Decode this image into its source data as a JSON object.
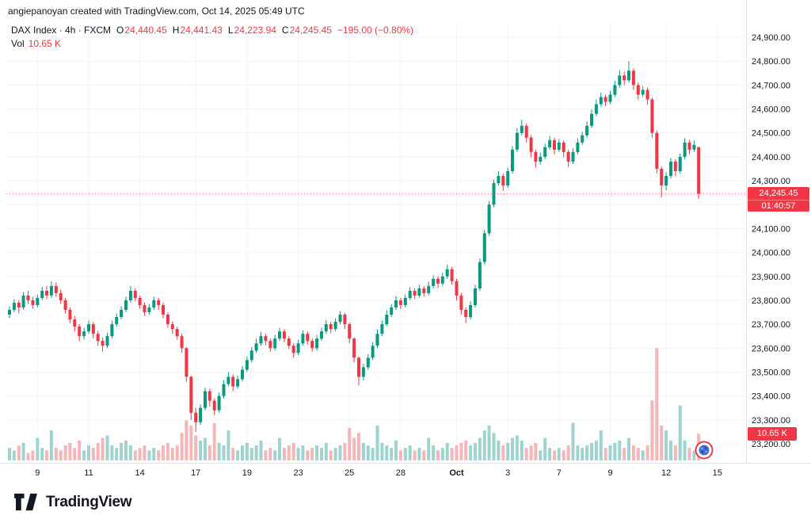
{
  "attribution": "angiepanoyan created with TradingView.com, Oct 14, 2025 05:49 UTC",
  "legend": {
    "title": "DAX Index · 4h · FXCM",
    "o_label": "O",
    "o": "24,440.45",
    "h_label": "H",
    "h": "24,441.43",
    "l_label": "L",
    "l": "24,223.94",
    "c_label": "C",
    "c": "24,245.45",
    "change": "−195.00 (−0.80%)",
    "vol_label": "Vol",
    "vol_value": "10.65 K"
  },
  "badges": {
    "price": "24,245.45",
    "countdown": "01:40:57",
    "volume": "10.65 K"
  },
  "footer": {
    "brand": "TradingView"
  },
  "chart_data": {
    "type": "candlestick",
    "symbol": "DAX Index",
    "interval": "4h",
    "exchange": "FXCM",
    "last_price": 24245.45,
    "last_volume_k": 10.65,
    "y_min": 23200,
    "y_max": 24900,
    "vol_axis_max": 46,
    "grid": true,
    "y_ticks": [
      24900,
      24800,
      24700,
      24600,
      24500,
      24400,
      24300,
      24200,
      24100,
      24000,
      23900,
      23800,
      23700,
      23600,
      23500,
      23400,
      23300,
      23200
    ],
    "x_ticks": [
      {
        "i": 6,
        "label": "9"
      },
      {
        "i": 17,
        "label": "11"
      },
      {
        "i": 28,
        "label": "14"
      },
      {
        "i": 40,
        "label": "17"
      },
      {
        "i": 51,
        "label": "19"
      },
      {
        "i": 62,
        "label": "23"
      },
      {
        "i": 73,
        "label": "25"
      },
      {
        "i": 84,
        "label": "28"
      },
      {
        "i": 96,
        "label": "Oct",
        "bold": true
      },
      {
        "i": 107,
        "label": "3"
      },
      {
        "i": 118,
        "label": "7"
      },
      {
        "i": 129,
        "label": "9"
      },
      {
        "i": 141,
        "label": "12"
      },
      {
        "i": 152,
        "label": "15"
      }
    ],
    "colors": {
      "up": "#089981",
      "down": "#f23645",
      "vol_up": "#9ed4cd",
      "vol_down": "#f5b6b8",
      "grid": "#f0f3fa",
      "border": "#e0e3eb",
      "axis_text": "#131722",
      "badge": "#f23645"
    },
    "candles": [
      [
        23740,
        23775,
        23725,
        23760,
        5
      ],
      [
        23760,
        23805,
        23750,
        23790,
        4
      ],
      [
        23790,
        23800,
        23745,
        23770,
        6
      ],
      [
        23770,
        23835,
        23760,
        23820,
        7
      ],
      [
        23820,
        23840,
        23785,
        23800,
        3
      ],
      [
        23800,
        23815,
        23765,
        23780,
        4
      ],
      [
        23780,
        23825,
        23770,
        23810,
        9
      ],
      [
        23810,
        23855,
        23800,
        23840,
        5
      ],
      [
        23840,
        23860,
        23805,
        23820,
        4
      ],
      [
        23820,
        23880,
        23810,
        23860,
        12
      ],
      [
        23860,
        23875,
        23815,
        23830,
        5
      ],
      [
        23830,
        23845,
        23785,
        23800,
        4
      ],
      [
        23800,
        23810,
        23745,
        23760,
        6
      ],
      [
        23760,
        23770,
        23705,
        23720,
        7
      ],
      [
        23720,
        23735,
        23670,
        23690,
        5
      ],
      [
        23690,
        23700,
        23630,
        23650,
        8
      ],
      [
        23650,
        23685,
        23635,
        23670,
        4
      ],
      [
        23670,
        23715,
        23660,
        23700,
        6
      ],
      [
        23700,
        23710,
        23640,
        23660,
        5
      ],
      [
        23660,
        23672,
        23610,
        23630,
        7
      ],
      [
        23630,
        23645,
        23585,
        23610,
        9
      ],
      [
        23610,
        23665,
        23600,
        23650,
        10
      ],
      [
        23650,
        23715,
        23640,
        23700,
        6
      ],
      [
        23700,
        23745,
        23690,
        23730,
        5
      ],
      [
        23730,
        23775,
        23720,
        23760,
        7
      ],
      [
        23760,
        23815,
        23750,
        23800,
        8
      ],
      [
        23800,
        23860,
        23790,
        23840,
        6
      ],
      [
        23840,
        23850,
        23795,
        23810,
        4
      ],
      [
        23810,
        23820,
        23765,
        23780,
        5
      ],
      [
        23780,
        23790,
        23735,
        23750,
        6
      ],
      [
        23750,
        23785,
        23740,
        23770,
        4
      ],
      [
        23770,
        23815,
        23760,
        23800,
        5
      ],
      [
        23800,
        23810,
        23760,
        23780,
        4
      ],
      [
        23780,
        23790,
        23725,
        23740,
        6
      ],
      [
        23740,
        23750,
        23685,
        23700,
        7
      ],
      [
        23700,
        23712,
        23660,
        23680,
        5
      ],
      [
        23680,
        23690,
        23635,
        23650,
        6
      ],
      [
        23650,
        23660,
        23580,
        23600,
        11
      ],
      [
        23600,
        23605,
        23460,
        23480,
        16
      ],
      [
        23480,
        23485,
        23300,
        23330,
        14
      ],
      [
        23330,
        23350,
        23250,
        23290,
        10
      ],
      [
        23290,
        23365,
        23280,
        23350,
        8
      ],
      [
        23350,
        23435,
        23340,
        23420,
        9
      ],
      [
        23420,
        23430,
        23355,
        23380,
        6
      ],
      [
        23380,
        23390,
        23320,
        23340,
        15
      ],
      [
        23340,
        23415,
        23330,
        23400,
        7
      ],
      [
        23400,
        23465,
        23390,
        23450,
        6
      ],
      [
        23450,
        23500,
        23440,
        23480,
        12
      ],
      [
        23480,
        23490,
        23420,
        23440,
        5
      ],
      [
        23440,
        23485,
        23430,
        23470,
        4
      ],
      [
        23470,
        23525,
        23460,
        23510,
        6
      ],
      [
        23510,
        23565,
        23500,
        23550,
        7
      ],
      [
        23550,
        23605,
        23540,
        23590,
        5
      ],
      [
        23590,
        23640,
        23580,
        23620,
        6
      ],
      [
        23620,
        23668,
        23610,
        23650,
        8
      ],
      [
        23650,
        23660,
        23612,
        23630,
        4
      ],
      [
        23630,
        23640,
        23585,
        23600,
        5
      ],
      [
        23600,
        23655,
        23590,
        23640,
        4
      ],
      [
        23640,
        23685,
        23630,
        23670,
        9
      ],
      [
        23670,
        23680,
        23625,
        23640,
        5
      ],
      [
        23640,
        23650,
        23595,
        23610,
        6
      ],
      [
        23610,
        23620,
        23560,
        23580,
        7
      ],
      [
        23580,
        23635,
        23570,
        23620,
        5
      ],
      [
        23620,
        23675,
        23610,
        23660,
        6
      ],
      [
        23660,
        23670,
        23615,
        23630,
        4
      ],
      [
        23630,
        23640,
        23585,
        23600,
        5
      ],
      [
        23600,
        23655,
        23590,
        23640,
        6
      ],
      [
        23640,
        23685,
        23630,
        23670,
        5
      ],
      [
        23670,
        23718,
        23660,
        23700,
        7
      ],
      [
        23700,
        23710,
        23662,
        23680,
        4
      ],
      [
        23680,
        23725,
        23670,
        23710,
        5
      ],
      [
        23710,
        23755,
        23700,
        23740,
        6
      ],
      [
        23740,
        23748,
        23680,
        23700,
        7
      ],
      [
        23700,
        23708,
        23620,
        23640,
        13
      ],
      [
        23640,
        23645,
        23540,
        23560,
        9
      ],
      [
        23560,
        23565,
        23445,
        23480,
        11
      ],
      [
        23480,
        23535,
        23465,
        23520,
        7
      ],
      [
        23520,
        23575,
        23510,
        23560,
        6
      ],
      [
        23560,
        23625,
        23550,
        23610,
        5
      ],
      [
        23610,
        23680,
        23600,
        23660,
        14
      ],
      [
        23660,
        23715,
        23650,
        23700,
        7
      ],
      [
        23700,
        23758,
        23692,
        23740,
        6
      ],
      [
        23740,
        23785,
        23730,
        23770,
        5
      ],
      [
        23770,
        23818,
        23760,
        23800,
        8
      ],
      [
        23800,
        23810,
        23762,
        23780,
        4
      ],
      [
        23780,
        23825,
        23770,
        23810,
        5
      ],
      [
        23810,
        23855,
        23800,
        23840,
        6
      ],
      [
        23840,
        23850,
        23805,
        23820,
        4
      ],
      [
        23820,
        23865,
        23810,
        23850,
        5
      ],
      [
        23850,
        23860,
        23815,
        23830,
        4
      ],
      [
        23830,
        23878,
        23820,
        23860,
        9
      ],
      [
        23860,
        23905,
        23850,
        23890,
        6
      ],
      [
        23890,
        23900,
        23852,
        23870,
        4
      ],
      [
        23870,
        23915,
        23860,
        23900,
        5
      ],
      [
        23900,
        23948,
        23890,
        23930,
        7
      ],
      [
        23930,
        23940,
        23865,
        23880,
        5
      ],
      [
        23880,
        23890,
        23800,
        23820,
        6
      ],
      [
        23820,
        23830,
        23740,
        23760,
        7
      ],
      [
        23760,
        23770,
        23705,
        23730,
        8
      ],
      [
        23730,
        23795,
        23720,
        23780,
        6
      ],
      [
        23780,
        23865,
        23770,
        23850,
        7
      ],
      [
        23850,
        23975,
        23840,
        23960,
        9
      ],
      [
        23960,
        24095,
        23950,
        24080,
        12
      ],
      [
        24080,
        24215,
        24070,
        24200,
        14
      ],
      [
        24200,
        24305,
        24190,
        24290,
        11
      ],
      [
        24290,
        24340,
        24280,
        24320,
        8
      ],
      [
        24320,
        24330,
        24258,
        24280,
        6
      ],
      [
        24280,
        24355,
        24270,
        24340,
        7
      ],
      [
        24340,
        24445,
        24330,
        24430,
        9
      ],
      [
        24430,
        24520,
        24420,
        24500,
        10
      ],
      [
        24500,
        24555,
        24490,
        24530,
        8
      ],
      [
        24530,
        24540,
        24460,
        24480,
        5
      ],
      [
        24480,
        24490,
        24398,
        24420,
        6
      ],
      [
        24420,
        24430,
        24355,
        24380,
        7
      ],
      [
        24380,
        24418,
        24368,
        24400,
        4
      ],
      [
        24400,
        24455,
        24390,
        24440,
        9
      ],
      [
        24440,
        24488,
        24430,
        24470,
        5
      ],
      [
        24470,
        24480,
        24410,
        24430,
        4
      ],
      [
        24430,
        24475,
        24420,
        24460,
        5
      ],
      [
        24460,
        24470,
        24398,
        24420,
        4
      ],
      [
        24420,
        24430,
        24358,
        24380,
        6
      ],
      [
        24380,
        24435,
        24370,
        24420,
        15
      ],
      [
        24420,
        24478,
        24410,
        24460,
        6
      ],
      [
        24460,
        24505,
        24450,
        24490,
        5
      ],
      [
        24490,
        24548,
        24480,
        24530,
        6
      ],
      [
        24530,
        24598,
        24520,
        24580,
        7
      ],
      [
        24580,
        24640,
        24570,
        24620,
        8
      ],
      [
        24620,
        24668,
        24610,
        24650,
        12
      ],
      [
        24650,
        24660,
        24612,
        24630,
        5
      ],
      [
        24630,
        24675,
        24620,
        24660,
        6
      ],
      [
        24660,
        24718,
        24650,
        24700,
        7
      ],
      [
        24700,
        24762,
        24690,
        24740,
        8
      ],
      [
        24740,
        24755,
        24700,
        24720,
        5
      ],
      [
        24720,
        24800,
        24710,
        24760,
        9
      ],
      [
        24760,
        24770,
        24680,
        24700,
        6
      ],
      [
        24700,
        24712,
        24640,
        24660,
        5
      ],
      [
        24660,
        24695,
        24650,
        24680,
        4
      ],
      [
        24680,
        24690,
        24618,
        24640,
        6
      ],
      [
        24640,
        24648,
        24480,
        24500,
        24
      ],
      [
        24500,
        24510,
        24330,
        24350,
        45
      ],
      [
        24350,
        24360,
        24230,
        24280,
        14
      ],
      [
        24280,
        24335,
        24260,
        24320,
        12
      ],
      [
        24320,
        24395,
        24310,
        24380,
        8
      ],
      [
        24380,
        24390,
        24318,
        24340,
        6
      ],
      [
        24340,
        24415,
        24330,
        24400,
        22
      ],
      [
        24400,
        24478,
        24390,
        24460,
        8
      ],
      [
        24460,
        24470,
        24412,
        24430,
        5
      ],
      [
        24430,
        24468,
        24420,
        24450,
        4
      ],
      [
        24440.45,
        24441.43,
        24223.94,
        24245.45,
        10.65
      ]
    ]
  }
}
